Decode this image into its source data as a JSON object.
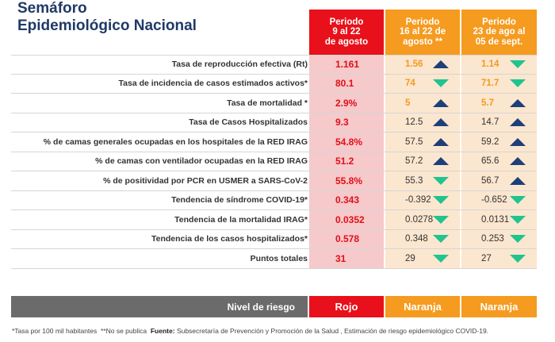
{
  "title": {
    "line1": "Semáforo",
    "line2": "Epidemiológico Nacional"
  },
  "headers": [
    {
      "l1": "Periodo",
      "l2": "9 al 22",
      "l3": "de agosto"
    },
    {
      "l1": "Periodo",
      "l2": "16 al 22 de",
      "l3": "agosto **"
    },
    {
      "l1": "Periodo",
      "l2": "23 de ago al",
      "l3": "05 de sept."
    }
  ],
  "rows": [
    {
      "label": "Tasa de reproducción efectiva (Rt)",
      "v1": "1.161",
      "v2": "1.56",
      "a2": "up",
      "v3": "1.14",
      "a3": "down",
      "orange": true
    },
    {
      "label": "Tasa de incidencia de casos estimados activos*",
      "v1": "80.1",
      "v2": "74",
      "a2": "down",
      "v3": "71.7",
      "a3": "down",
      "orange": true
    },
    {
      "label": "Tasa de mortalidad *",
      "v1": "2.9%",
      "v2": "5",
      "a2": "up",
      "v3": "5.7",
      "a3": "up",
      "orange": true
    },
    {
      "label": "Tasa de Casos Hospitalizados",
      "v1": "9.3",
      "v2": "12.5",
      "a2": "up",
      "v3": "14.7",
      "a3": "up",
      "orange": false
    },
    {
      "label": "% de camas generales ocupadas en los hospitales de la RED IRAG",
      "v1": "54.8%",
      "v2": "57.5",
      "a2": "up",
      "v3": "59.2",
      "a3": "up",
      "orange": false
    },
    {
      "label": "% de camas con ventilador ocupadas en la RED IRAG",
      "v1": "51.2",
      "v2": "57.2",
      "a2": "up",
      "v3": "65.6",
      "a3": "up",
      "orange": false
    },
    {
      "label": "% de positividad por PCR en USMER a SARS-CoV-2",
      "v1": "55.8%",
      "v2": "55.3",
      "a2": "down",
      "v3": "56.7",
      "a3": "up",
      "orange": false
    },
    {
      "label": "Tendencia de síndrome COVID-19*",
      "v1": "0.343",
      "v2": "-0.392",
      "a2": "down",
      "v3": "-0.652",
      "a3": "down",
      "orange": false
    },
    {
      "label": "Tendencia de la mortalidad IRAG*",
      "v1": "0.0352",
      "v2": "0.0278",
      "a2": "down",
      "v3": "0.0131",
      "a3": "down",
      "orange": false
    },
    {
      "label": "Tendencia de los casos hospitalizados*",
      "v1": "0.578",
      "v2": "0.348",
      "a2": "down",
      "v3": "0.253",
      "a3": "down",
      "orange": false
    },
    {
      "label": "Puntos totales",
      "v1": "31",
      "v2": "29",
      "a2": "down",
      "v3": "27",
      "a3": "down",
      "orange": false
    }
  ],
  "risk": {
    "label": "Nivel de riesgo",
    "v1": "Rojo",
    "v2": "Naranja",
    "v3": "Naranja"
  },
  "footer": {
    "note1": "*Tasa por 100 mil habitantes",
    "note2": "**No se publica",
    "source_label": "Fuente:",
    "source_text": "Subsecretaría de Prevención y Promoción de la Salud , Estimación de riesgo epidemiológico COVID-19."
  },
  "colors": {
    "red": "#e8101a",
    "orange": "#f59b1f",
    "navy": "#1f3a66",
    "up_arrow": "#1d3f7a",
    "down_arrow": "#1fc48e"
  }
}
